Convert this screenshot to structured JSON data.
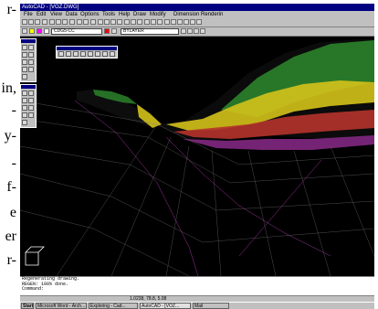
{
  "page_text": [
    "r-",
    "in,",
    "-",
    "y-",
    "-",
    "f-",
    "e",
    "er",
    "r-"
  ],
  "window": {
    "title": "AutoCAD - [VOZ.DWG]",
    "menus": [
      "File",
      "Edit",
      "View",
      "Data",
      "Options",
      "Tools",
      "Help",
      "Draw",
      "Modify",
      "Dimension",
      "Renderin"
    ]
  },
  "toolbar2": {
    "layer_value": "CDG5-CC",
    "linetype_value": "BYLAYER"
  },
  "command_window": {
    "lines": [
      "Regenerating drawing.",
      "REGEN: 100% done.",
      "Command:"
    ]
  },
  "status": {
    "coords": "1.0238, 78.8, 5.08"
  },
  "taskbar": {
    "items": [
      "Start",
      "Microsoft Word - Arch...",
      "Exploring - Cad...",
      "AutoCAD - [VOZ...",
      "Mail"
    ]
  }
}
